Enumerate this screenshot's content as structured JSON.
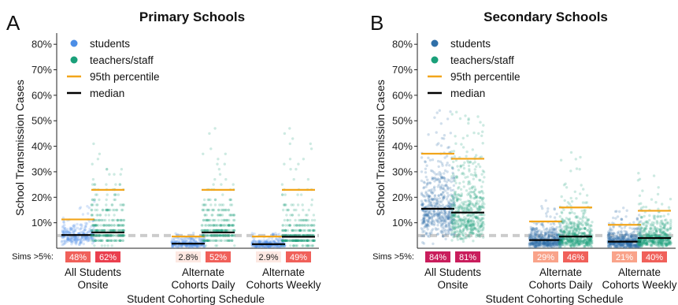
{
  "colors": {
    "students_primary": "#4c8ee6",
    "students_secondary": "#2f6fa8",
    "staff": "#1aa07a",
    "p95": "#f2a51a",
    "median": "#000000",
    "threshold": "#cccccc"
  },
  "chart_data": [
    {
      "type": "scatter",
      "panel_label": "A",
      "title": "Primary Schools",
      "xlabel": "Student Cohorting Schedule",
      "ylabel": "School Transmission Cases",
      "ylim": [
        0,
        0.85
      ],
      "yticks": [
        "10%",
        "20%",
        "30%",
        "40%",
        "50%",
        "60%",
        "70%",
        "80%"
      ],
      "threshold": 0.05,
      "legend": {
        "position": "top-left",
        "entries": [
          "students",
          "teachers/staff",
          "95th percentile",
          "median"
        ]
      },
      "sims_label": "Sims >5%:",
      "categories": [
        {
          "label": [
            "All Students",
            "Onsite"
          ],
          "students": {
            "median": 0.052,
            "p95": 0.113,
            "max": 0.2,
            "pct_over_5": "48%"
          },
          "staff": {
            "median": 0.062,
            "p95": 0.229,
            "max": 0.43,
            "pct_over_5": "62%"
          }
        },
        {
          "label": [
            "Alternate",
            "Cohorts Daily"
          ],
          "students": {
            "median": 0.018,
            "p95": 0.046,
            "max": 0.06,
            "pct_over_5": "2.8%"
          },
          "staff": {
            "median": 0.062,
            "p95": 0.229,
            "max": 0.5,
            "pct_over_5": "52%"
          }
        },
        {
          "label": [
            "Alternate",
            "Cohorts Weekly"
          ],
          "students": {
            "median": 0.016,
            "p95": 0.046,
            "max": 0.06,
            "pct_over_5": "2.9%"
          },
          "staff": {
            "median": 0.045,
            "p95": 0.229,
            "max": 0.47,
            "pct_over_5": "49%"
          }
        }
      ]
    },
    {
      "type": "scatter",
      "panel_label": "B",
      "title": "Secondary Schools",
      "xlabel": "Student Cohorting Schedule",
      "ylabel": "School Transmission Cases",
      "ylim": [
        0,
        0.85
      ],
      "yticks": [
        "10%",
        "20%",
        "30%",
        "40%",
        "50%",
        "60%",
        "70%",
        "80%"
      ],
      "threshold": 0.05,
      "legend": {
        "position": "top-left",
        "entries": [
          "students",
          "teachers/staff",
          "95th percentile",
          "median"
        ]
      },
      "sims_label": "Sims >5%:",
      "categories": [
        {
          "label": [
            "All Students",
            "Onsite"
          ],
          "students": {
            "median": 0.155,
            "p95": 0.371,
            "max": 0.56,
            "pct_over_5": "84%"
          },
          "staff": {
            "median": 0.14,
            "p95": 0.351,
            "max": 0.55,
            "pct_over_5": "81%"
          }
        },
        {
          "label": [
            "Alternate",
            "Cohorts Daily"
          ],
          "students": {
            "median": 0.032,
            "p95": 0.105,
            "max": 0.19,
            "pct_over_5": "29%"
          },
          "staff": {
            "median": 0.046,
            "p95": 0.16,
            "max": 0.38,
            "pct_over_5": "46%"
          }
        },
        {
          "label": [
            "Alternate",
            "Cohorts Weekly"
          ],
          "students": {
            "median": 0.026,
            "p95": 0.092,
            "max": 0.16,
            "pct_over_5": "21%"
          },
          "staff": {
            "median": 0.04,
            "p95": 0.147,
            "max": 0.3,
            "pct_over_5": "40%"
          }
        }
      ]
    }
  ]
}
